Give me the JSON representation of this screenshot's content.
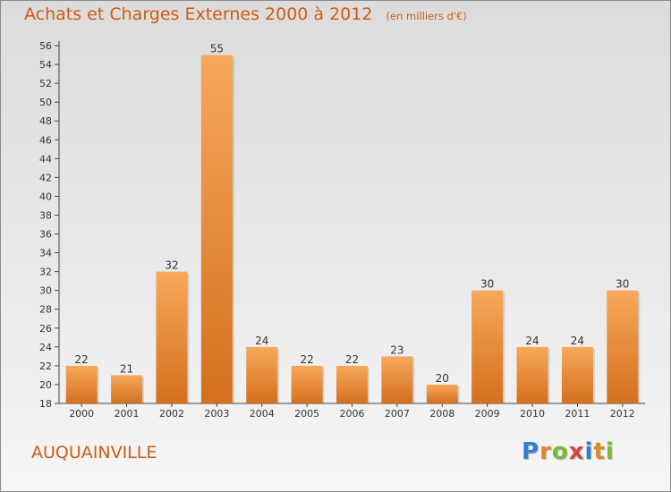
{
  "header": {
    "title": "Achats et Charges Externes 2000 à 2012",
    "unit": "(en milliers d'€)"
  },
  "footer": {
    "commune": "AUQUAINVILLE",
    "brand": "Proxiti",
    "brand_colors": [
      "#2f7fd0",
      "#e0862a",
      "#7ab83a",
      "#d64541",
      "#2f7fd0",
      "#e0862a",
      "#7ab83a"
    ]
  },
  "colors": {
    "accent": "#d05a12",
    "bar_light": "#f7a85a",
    "bar_dark": "#d4701e",
    "axis": "#444444"
  },
  "chart_data": {
    "type": "bar",
    "title": "Achats et Charges Externes 2000 à 2012",
    "subtitle": "(en milliers d'€)",
    "categories": [
      "2000",
      "2001",
      "2002",
      "2003",
      "2004",
      "2005",
      "2006",
      "2007",
      "2008",
      "2009",
      "2010",
      "2011",
      "2012"
    ],
    "values": [
      22,
      21,
      32,
      55,
      24,
      22,
      22,
      23,
      20,
      30,
      24,
      24,
      30
    ],
    "ylim": [
      18,
      56
    ],
    "yticks": [
      18,
      20,
      22,
      24,
      26,
      28,
      30,
      32,
      34,
      36,
      38,
      40,
      42,
      44,
      46,
      48,
      50,
      52,
      54,
      56
    ],
    "grid": false,
    "data_labels": true,
    "xlabel": "",
    "ylabel": ""
  }
}
